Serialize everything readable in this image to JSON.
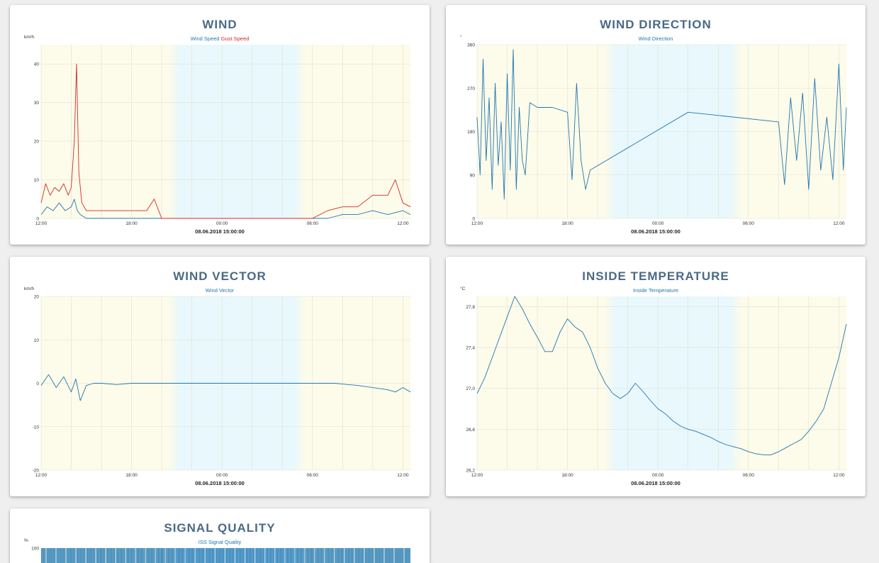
{
  "colors": {
    "wind_speed": "#1f77b4",
    "gust_speed": "#d62728",
    "title": "#4a6a86",
    "day_bg": "#fdfbe9",
    "night_bg": "#e8f8fc"
  },
  "cards": [
    {
      "id": "wind",
      "title": "WIND",
      "unit": "km/h",
      "legend": [
        {
          "label": "Wind Speed",
          "color": "#1f77b4"
        },
        {
          "label": "Gust Speed",
          "color": "#d62728"
        }
      ],
      "date_label": "08.06.2018 15:00:00"
    },
    {
      "id": "wind-direction",
      "title": "WIND DIRECTION",
      "unit": "°",
      "legend": [
        {
          "label": "Wind Direction",
          "color": "#1f77b4"
        }
      ],
      "date_label": "08.06.2018 15:00:00"
    },
    {
      "id": "wind-vector",
      "title": "WIND VECTOR",
      "unit": "km/h",
      "legend": [
        {
          "label": "Wind Vector",
          "color": "#1f77b4"
        }
      ],
      "date_label": "08.06.2018 15:00:00"
    },
    {
      "id": "inside-temperature",
      "title": "INSIDE TEMPERATURE",
      "unit": "°C",
      "legend": [
        {
          "label": "Inside Temperature",
          "color": "#1f77b4"
        }
      ],
      "date_label": "08.06.2018 15:00:00"
    },
    {
      "id": "signal-quality",
      "title": "SIGNAL QUALITY",
      "unit": "%",
      "legend": [
        {
          "label": "ISS Signal Quality",
          "color": "#1f77b4"
        }
      ],
      "date_label": ""
    }
  ],
  "chart_data": [
    {
      "type": "line",
      "title": "WIND",
      "ylabel": "km/h",
      "xlim": [
        12,
        36.5
      ],
      "ylim": [
        0,
        45
      ],
      "y_ticks": [
        0,
        10,
        20,
        30,
        40
      ],
      "x_ticks": [
        {
          "value": 12,
          "label": "12:00"
        },
        {
          "value": 18,
          "label": "18:00"
        },
        {
          "value": 24,
          "label": "00:00"
        },
        {
          "value": 30,
          "label": "06:00"
        },
        {
          "value": 36,
          "label": "12:00"
        }
      ],
      "night_band": [
        20.7,
        29.3
      ],
      "grid": true,
      "series": [
        {
          "name": "Wind Speed",
          "color": "#1f77b4",
          "x": [
            12.0,
            12.4,
            12.8,
            13.2,
            13.6,
            14.0,
            14.2,
            14.4,
            14.6,
            15.0,
            16.0,
            17.0,
            18.0,
            19.0,
            19.5,
            20.0,
            22.0,
            26.0,
            30.0,
            31.0,
            32.0,
            33.0,
            34.0,
            35.0,
            36.0,
            36.5
          ],
          "y": [
            1,
            3,
            2,
            4,
            2,
            3,
            5,
            2,
            1,
            0,
            0,
            0,
            0,
            0,
            0,
            0,
            0,
            0,
            0,
            0,
            1,
            1,
            2,
            1,
            2,
            1
          ]
        },
        {
          "name": "Gust Speed",
          "color": "#d62728",
          "x": [
            12.0,
            12.3,
            12.6,
            12.9,
            13.2,
            13.5,
            13.8,
            14.0,
            14.2,
            14.35,
            14.5,
            14.7,
            15.0,
            15.5,
            16.0,
            17.0,
            18.0,
            19.0,
            19.5,
            20.0,
            22.0,
            26.0,
            30.0,
            31.0,
            32.0,
            33.0,
            34.0,
            35.0,
            35.5,
            36.0,
            36.5
          ],
          "y": [
            4,
            9,
            6,
            8,
            7,
            9,
            6,
            8,
            20,
            40,
            12,
            4,
            2,
            2,
            2,
            2,
            2,
            2,
            5,
            0,
            0,
            0,
            0,
            2,
            3,
            3,
            6,
            6,
            10,
            4,
            3
          ]
        }
      ]
    },
    {
      "type": "line",
      "title": "WIND DIRECTION",
      "ylabel": "°",
      "xlim": [
        12,
        36.5
      ],
      "ylim": [
        0,
        360
      ],
      "y_ticks": [
        0,
        90,
        180,
        270,
        360
      ],
      "x_ticks": [
        {
          "value": 12,
          "label": "12:00"
        },
        {
          "value": 18,
          "label": "18:00"
        },
        {
          "value": 24,
          "label": "00:00"
        },
        {
          "value": 30,
          "label": "06:00"
        },
        {
          "value": 36,
          "label": "12:00"
        }
      ],
      "night_band": [
        20.7,
        29.3
      ],
      "grid": true,
      "series": [
        {
          "name": "Wind Direction",
          "color": "#1f77b4",
          "x": [
            12.0,
            12.2,
            12.4,
            12.6,
            12.8,
            13.0,
            13.2,
            13.4,
            13.6,
            13.8,
            14.0,
            14.2,
            14.4,
            14.6,
            14.8,
            15.0,
            15.2,
            15.5,
            16.0,
            17.0,
            18.0,
            18.3,
            18.6,
            18.9,
            19.2,
            19.5,
            26.0,
            32.0,
            32.4,
            32.8,
            33.2,
            33.6,
            34.0,
            34.4,
            34.8,
            35.2,
            35.6,
            36.0,
            36.3,
            36.5
          ],
          "y": [
            210,
            90,
            330,
            120,
            250,
            60,
            280,
            110,
            200,
            40,
            300,
            100,
            350,
            60,
            230,
            120,
            90,
            240,
            230,
            230,
            220,
            80,
            280,
            120,
            60,
            100,
            220,
            200,
            70,
            250,
            120,
            260,
            60,
            290,
            100,
            210,
            80,
            320,
            100,
            230
          ]
        }
      ]
    },
    {
      "type": "line",
      "title": "WIND VECTOR",
      "ylabel": "km/h",
      "xlim": [
        12,
        36.5
      ],
      "ylim": [
        -20,
        20
      ],
      "y_ticks": [
        -20,
        -10,
        0,
        10,
        20
      ],
      "x_ticks": [
        {
          "value": 12,
          "label": "12:00"
        },
        {
          "value": 18,
          "label": "18:00"
        },
        {
          "value": 24,
          "label": "00:00"
        },
        {
          "value": 30,
          "label": "06:00"
        },
        {
          "value": 36,
          "label": "12:00"
        }
      ],
      "night_band": [
        20.7,
        29.3
      ],
      "grid": true,
      "series": [
        {
          "name": "Wind Vector",
          "color": "#1f77b4",
          "x": [
            12.0,
            12.5,
            13.0,
            13.5,
            14.0,
            14.3,
            14.6,
            15.0,
            15.5,
            16.0,
            17.0,
            18.0,
            19.0,
            19.5,
            31.5,
            32.0,
            33.0,
            34.0,
            35.0,
            35.5,
            36.0,
            36.5
          ],
          "y": [
            -0.5,
            2,
            -1,
            1.5,
            -2,
            1,
            -4,
            -0.5,
            0,
            0,
            -0.3,
            0,
            0,
            0,
            0,
            -0.2,
            -0.5,
            -1,
            -1.5,
            -2,
            -1,
            -2
          ]
        }
      ]
    },
    {
      "type": "line",
      "title": "INSIDE TEMPERATURE",
      "ylabel": "°C",
      "xlim": [
        12,
        36.5
      ],
      "ylim": [
        26.2,
        27.9
      ],
      "y_ticks": [
        26.2,
        26.6,
        27.0,
        27.4,
        27.8
      ],
      "y_tick_labels": [
        "26,2",
        "26,6",
        "27,0",
        "27,4",
        "27,8"
      ],
      "x_ticks": [
        {
          "value": 12,
          "label": "12:00"
        },
        {
          "value": 18,
          "label": "18:00"
        },
        {
          "value": 24,
          "label": "00:00"
        },
        {
          "value": 30,
          "label": "06:00"
        },
        {
          "value": 36,
          "label": "12:00"
        }
      ],
      "night_band": [
        20.7,
        29.3
      ],
      "grid": true,
      "series": [
        {
          "name": "Inside Temperature",
          "color": "#1f77b4",
          "x": [
            12.0,
            12.5,
            13.0,
            13.5,
            14.0,
            14.5,
            15.0,
            15.5,
            16.0,
            16.5,
            17.0,
            17.5,
            18.0,
            18.5,
            19.0,
            19.5,
            20.0,
            20.5,
            21.0,
            21.5,
            22.0,
            22.5,
            23.0,
            23.5,
            24.0,
            24.5,
            25.0,
            25.5,
            26.0,
            26.5,
            27.0,
            27.5,
            28.0,
            28.5,
            29.0,
            29.5,
            30.0,
            30.5,
            31.0,
            31.5,
            32.0,
            32.5,
            33.0,
            33.5,
            34.0,
            34.5,
            35.0,
            35.5,
            36.0,
            36.5
          ],
          "y": [
            26.95,
            27.1,
            27.3,
            27.5,
            27.7,
            27.9,
            27.78,
            27.63,
            27.5,
            27.36,
            27.36,
            27.55,
            27.68,
            27.6,
            27.55,
            27.4,
            27.2,
            27.05,
            26.95,
            26.9,
            26.95,
            27.05,
            26.97,
            26.88,
            26.8,
            26.75,
            26.68,
            26.63,
            26.6,
            26.58,
            26.55,
            26.52,
            26.48,
            26.45,
            26.43,
            26.41,
            26.38,
            26.36,
            26.35,
            26.35,
            26.38,
            26.42,
            26.46,
            26.5,
            26.58,
            26.68,
            26.8,
            27.05,
            27.3,
            27.63
          ]
        }
      ]
    },
    {
      "type": "bar",
      "title": "SIGNAL QUALITY",
      "ylabel": "%",
      "xlim": [
        12,
        36.5
      ],
      "ylim": [
        0,
        100
      ],
      "y_ticks": [
        100
      ],
      "grid": true,
      "series": [
        {
          "name": "ISS Signal Quality",
          "color": "#1f77b4",
          "value": 100
        }
      ]
    }
  ]
}
